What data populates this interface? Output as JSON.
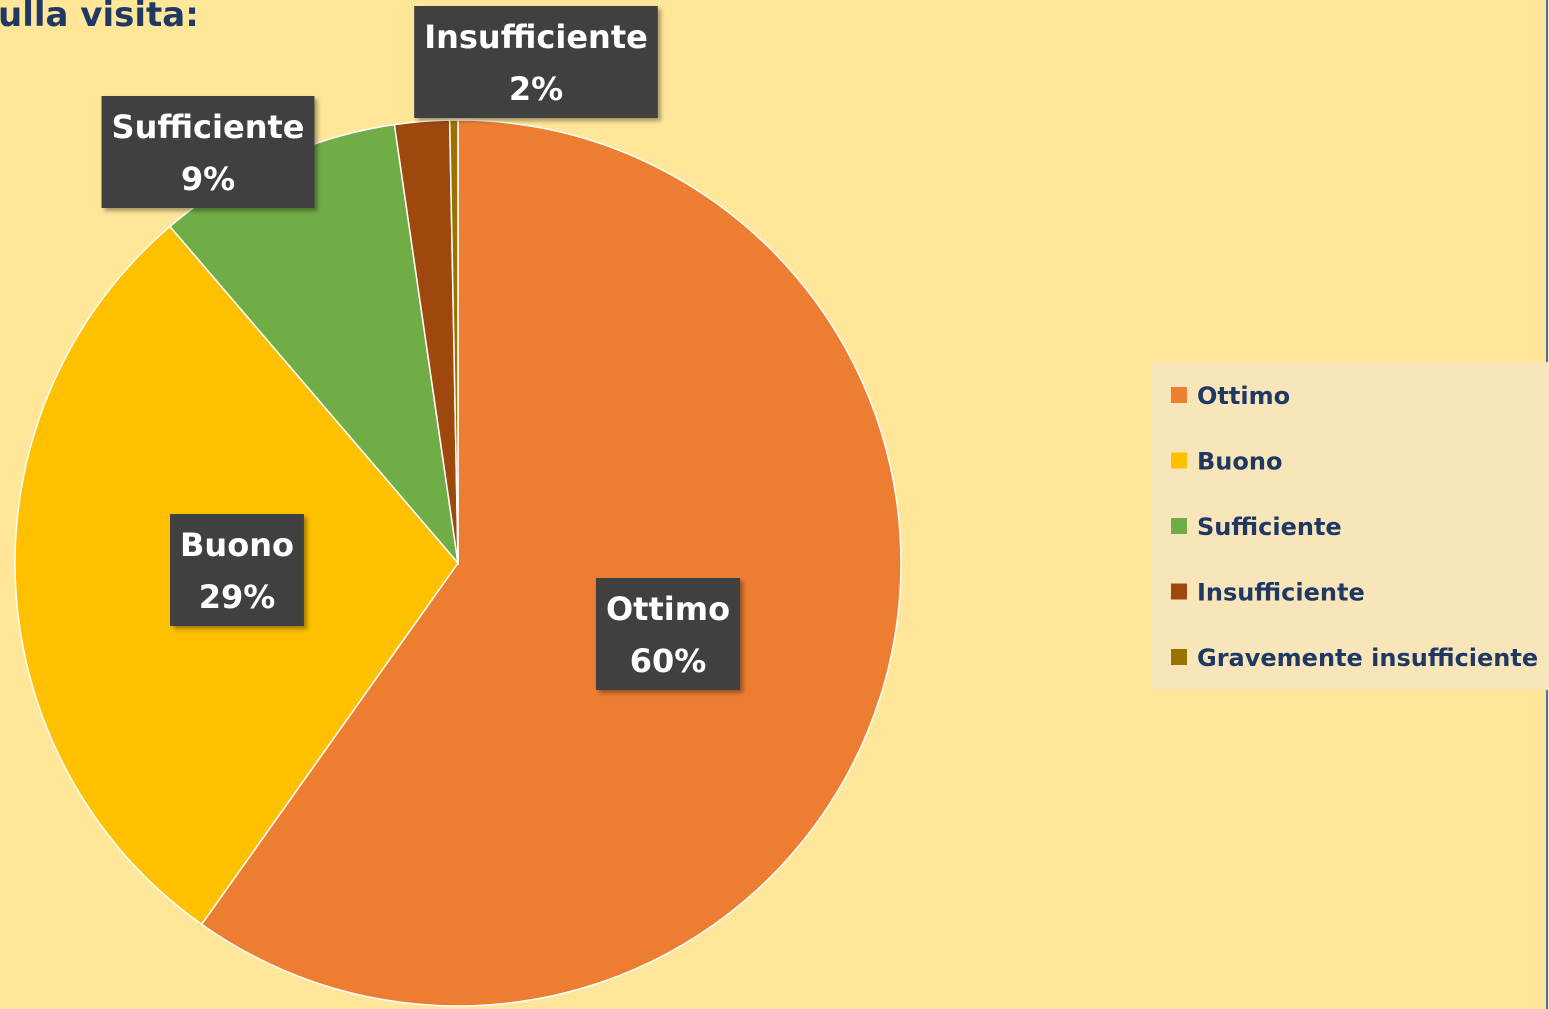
{
  "chart_data": {
    "type": "pie",
    "title": "ulla visita:",
    "categories": [
      "Ottimo",
      "Buono",
      "Sufficiente",
      "Insufficiente",
      "Gravemente insufficiente"
    ],
    "values": [
      60,
      29,
      9,
      2,
      0.3
    ],
    "value_labels": [
      "60%",
      "29%",
      "9%",
      "2%",
      null
    ],
    "colors": [
      "#ED7D31",
      "#FFC000",
      "#70AD47",
      "#9E480E",
      "#997300"
    ],
    "legend": "right"
  }
}
